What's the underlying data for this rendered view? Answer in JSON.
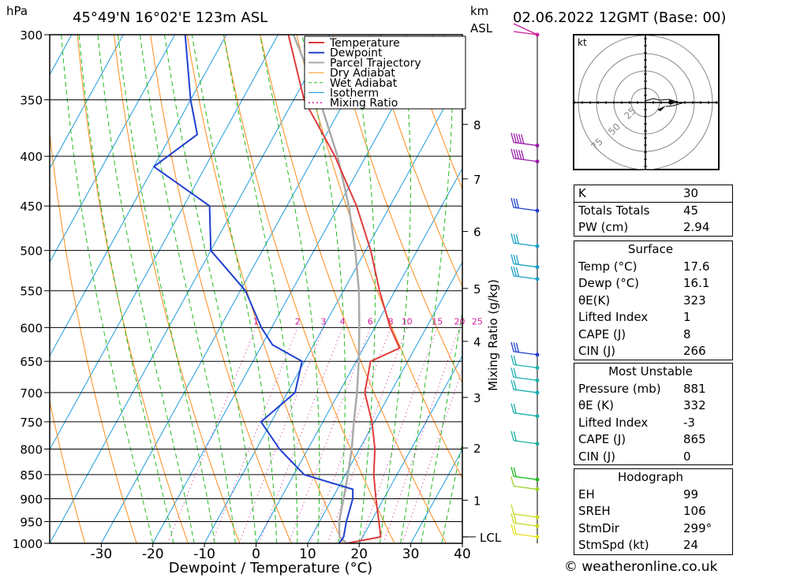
{
  "header": {
    "pressure_unit": "hPa",
    "location": "45°49'N  16°02'E  123m  ASL",
    "height_unit": "km",
    "height_ref": "ASL",
    "datetime": "02.06.2022  12GMT  (Base: 00)"
  },
  "colors": {
    "temperature": "#e03c3c",
    "dewpoint": "#2040d0",
    "parcel": "#aaaaaa",
    "dry_adiabat": "#ff8c1a",
    "wet_adiabat": "#22bb22",
    "isotherm": "#1f9be0",
    "mixing_ratio": "#d01c9c"
  },
  "chart_data": {
    "type": "line",
    "title": "45°49'N  16°02'E  123m  ASL",
    "xlabel": "Dewpoint / Temperature (°C)",
    "ylabel": "hPa",
    "xlim": [
      -40,
      40
    ],
    "ylim": [
      1000,
      300
    ],
    "y_scale": "log",
    "x_ticks": [
      "-30",
      "-20",
      "-10",
      "0",
      "10",
      "20",
      "30",
      "40"
    ],
    "x_tick_values": [
      -30,
      -20,
      -10,
      0,
      10,
      20,
      30,
      40
    ],
    "pressure_levels": [
      300,
      350,
      400,
      450,
      500,
      550,
      600,
      650,
      700,
      750,
      800,
      850,
      900,
      950,
      1000
    ],
    "pressure_labels": [
      "300",
      "350",
      "400",
      "450",
      "500",
      "550",
      "600",
      "650",
      "700",
      "750",
      "800",
      "850",
      "900",
      "950",
      "1000"
    ],
    "km_ticks": [
      {
        "label": "8",
        "p": 371
      },
      {
        "label": "7",
        "p": 422
      },
      {
        "label": "6",
        "p": 478
      },
      {
        "label": "5",
        "p": 547
      },
      {
        "label": "4",
        "p": 620
      },
      {
        "label": "3",
        "p": 708
      },
      {
        "label": "2",
        "p": 798
      },
      {
        "label": "1",
        "p": 903
      },
      {
        "label": "LCL",
        "p": 985
      }
    ],
    "secondary_axis_label": "Mixing Ratio (g/kg)",
    "mixing_ratio_labels": [
      "1",
      "2",
      "3",
      "4",
      "6",
      "8",
      "10",
      "15",
      "20",
      "25"
    ],
    "mixing_ratio_label_pressure": 600,
    "grid": true,
    "legend_position": "top-right",
    "legend": [
      "Temperature",
      "Dewpoint",
      "Parcel Trajectory",
      "Dry Adiabat",
      "Wet Adiabat",
      "Isotherm",
      "Mixing Ratio"
    ],
    "series": [
      {
        "name": "Temperature",
        "points": [
          [
            1000,
            17.6
          ],
          [
            985,
            23.5
          ],
          [
            950,
            21.5
          ],
          [
            900,
            18.5
          ],
          [
            850,
            15.5
          ],
          [
            800,
            13.0
          ],
          [
            750,
            9.5
          ],
          [
            700,
            5.0
          ],
          [
            650,
            2.8
          ],
          [
            630,
            7.0
          ],
          [
            600,
            3.0
          ],
          [
            550,
            -3.0
          ],
          [
            500,
            -9.0
          ],
          [
            450,
            -16.5
          ],
          [
            400,
            -26.0
          ],
          [
            370,
            -33.0
          ],
          [
            350,
            -38.0
          ],
          [
            300,
            -48.0
          ]
        ]
      },
      {
        "name": "Dewpoint",
        "points": [
          [
            1000,
            16.1
          ],
          [
            985,
            16.3
          ],
          [
            950,
            15.2
          ],
          [
            900,
            14.0
          ],
          [
            880,
            13.0
          ],
          [
            850,
            2.0
          ],
          [
            800,
            -5.5
          ],
          [
            750,
            -12.0
          ],
          [
            700,
            -8.5
          ],
          [
            650,
            -10.5
          ],
          [
            625,
            -18.0
          ],
          [
            600,
            -22.0
          ],
          [
            550,
            -29.0
          ],
          [
            500,
            -40.0
          ],
          [
            450,
            -45.0
          ],
          [
            410,
            -60.0
          ],
          [
            380,
            -55.0
          ],
          [
            350,
            -60.0
          ],
          [
            300,
            -68.0
          ]
        ]
      },
      {
        "name": "Parcel Trajectory",
        "points": [
          [
            1000,
            17.6
          ],
          [
            985,
            15.5
          ],
          [
            950,
            13.8
          ],
          [
            900,
            12.2
          ],
          [
            850,
            10.5
          ],
          [
            800,
            8.5
          ],
          [
            750,
            6.0
          ],
          [
            700,
            3.5
          ],
          [
            650,
            0.5
          ],
          [
            600,
            -3.0
          ],
          [
            550,
            -7.0
          ],
          [
            500,
            -12.0
          ],
          [
            450,
            -18.0
          ],
          [
            400,
            -25.5
          ],
          [
            350,
            -35.0
          ],
          [
            300,
            -47.0
          ]
        ]
      }
    ]
  },
  "hodograph": {
    "unit": "kt",
    "ring_labels": [
      "25",
      "50",
      "75"
    ]
  },
  "indices": {
    "k_label": "K",
    "k_value": "30",
    "tt_label": "Totals Totals",
    "tt_value": "45",
    "pw_label": "PW (cm)",
    "pw_value": "2.94"
  },
  "surface": {
    "title": "Surface",
    "temp_label": "Temp (°C)",
    "temp_value": "17.6",
    "dewp_label": "Dewp (°C)",
    "dewp_value": "16.1",
    "theta_label": "θE(K)",
    "theta_value": "323",
    "li_label": "Lifted Index",
    "li_value": "1",
    "cape_label": "CAPE (J)",
    "cape_value": "8",
    "cin_label": "CIN (J)",
    "cin_value": "266"
  },
  "most_unstable": {
    "title": "Most Unstable",
    "pressure_label": "Pressure (mb)",
    "pressure_value": "881",
    "theta_label": "θE (K)",
    "theta_value": "332",
    "li_label": "Lifted Index",
    "li_value": "-3",
    "cape_label": "CAPE (J)",
    "cape_value": "865",
    "cin_label": "CIN (J)",
    "cin_value": "0"
  },
  "hodo_params": {
    "title": "Hodograph",
    "eh_label": "EH",
    "eh_value": "99",
    "srh_label": "SREH",
    "srh_value": "106",
    "dir_label": "StmDir",
    "dir_value": "299°",
    "spd_label": "StmSpd (kt)",
    "spd_value": "24"
  },
  "credit": "© weatheronline.co.uk",
  "winds": [
    {
      "p": 300,
      "color": "#cc1f9a",
      "flags": 0,
      "barbs": 0
    },
    {
      "p": 390,
      "color": "#9a20a8",
      "flags": 0,
      "barbs": 5
    },
    {
      "p": 405,
      "color": "#9a20a8",
      "flags": 0,
      "barbs": 5
    },
    {
      "p": 455,
      "color": "#2040d0",
      "flags": 0,
      "barbs": 3
    },
    {
      "p": 495,
      "color": "#1ca0c8",
      "flags": 0,
      "barbs": 3
    },
    {
      "p": 520,
      "color": "#1ca0c8",
      "flags": 0,
      "barbs": 3
    },
    {
      "p": 535,
      "color": "#1ca0c8",
      "flags": 0,
      "barbs": 3
    },
    {
      "p": 640,
      "color": "#2040d0",
      "flags": 0,
      "barbs": 3
    },
    {
      "p": 660,
      "color": "#1cb0b0",
      "flags": 0,
      "barbs": 2
    },
    {
      "p": 680,
      "color": "#1cb0b0",
      "flags": 0,
      "barbs": 2
    },
    {
      "p": 700,
      "color": "#1cb0b0",
      "flags": 0,
      "barbs": 2
    },
    {
      "p": 740,
      "color": "#1cb0b0",
      "flags": 0,
      "barbs": 2
    },
    {
      "p": 790,
      "color": "#1cb0a0",
      "flags": 0,
      "barbs": 2
    },
    {
      "p": 860,
      "color": "#22bb22",
      "flags": 0,
      "barbs": 2
    },
    {
      "p": 880,
      "color": "#9ad020",
      "flags": 0,
      "barbs": 1
    },
    {
      "p": 940,
      "color": "#c8d820",
      "flags": 0,
      "barbs": 1
    },
    {
      "p": 960,
      "color": "#c8d820",
      "flags": 0,
      "barbs": 2
    },
    {
      "p": 985,
      "color": "#e8e020",
      "flags": 0,
      "barbs": 2
    }
  ]
}
